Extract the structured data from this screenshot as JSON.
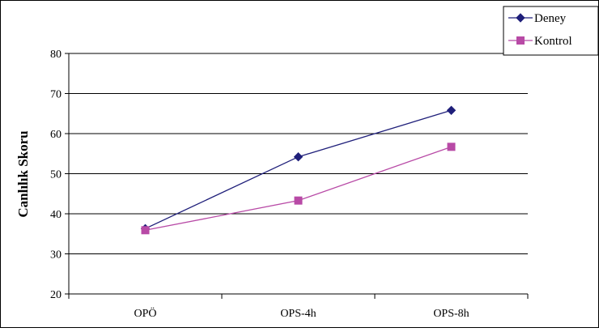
{
  "chart_data": {
    "type": "line",
    "title": "",
    "xlabel": "",
    "ylabel": "Canlılık Skoru",
    "categories": [
      "OPÖ",
      "OPS-4h",
      "OPS-8h"
    ],
    "ylim": [
      20,
      80
    ],
    "yticks": [
      20,
      30,
      40,
      50,
      60,
      70,
      80
    ],
    "grid": true,
    "legend_position": "top-right",
    "series": [
      {
        "name": "Deney",
        "values": [
          36.3,
          54.2,
          65.8
        ],
        "color": "#1f1f7a",
        "marker": "diamond"
      },
      {
        "name": "Kontrol",
        "values": [
          35.9,
          43.3,
          56.7
        ],
        "color": "#b84aa6",
        "marker": "square"
      }
    ]
  }
}
